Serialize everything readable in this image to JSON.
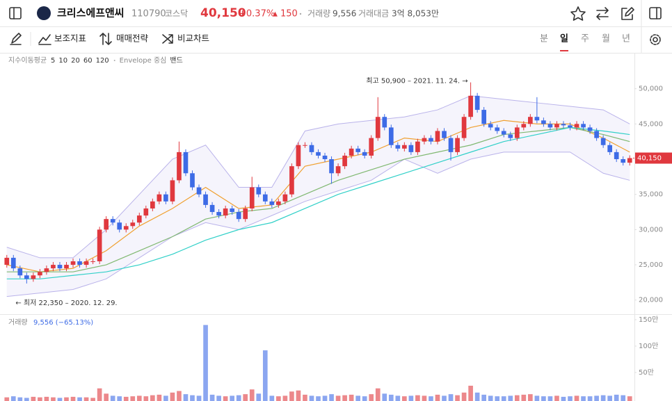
{
  "header": {
    "name": "크리스에프앤씨",
    "code": "110790",
    "market": "코스닥",
    "price": "40,150",
    "change_rate": "+0.37%",
    "arrow": "▲",
    "change": "150",
    "volume_label": "거래량",
    "volume": "9,556",
    "amount_label": "거래대금",
    "amount": "3억 8,053만"
  },
  "toolbar": {
    "tools": [
      "보조지표",
      "매매전략",
      "비교차트"
    ],
    "periods": [
      "분",
      "일",
      "주",
      "월",
      "년"
    ],
    "active_period": 1
  },
  "chart_data": {
    "type": "candlestick",
    "up_color": "#e0383e",
    "down_color": "#3d6be6",
    "open": [
      25000,
      26000,
      24500,
      23500,
      23000,
      23500,
      24000,
      24500,
      25000,
      24500,
      25000,
      25500,
      25000,
      25500,
      25500,
      30000,
      31500,
      31000,
      30000,
      30500,
      31000,
      32000,
      33000,
      34000,
      35000,
      34000,
      37000,
      41000,
      38000,
      36000,
      35000,
      33500,
      32500,
      32000,
      33000,
      32500,
      31500,
      33000,
      36000,
      35000,
      34000,
      33500,
      34000,
      35000,
      39000,
      42000,
      42000,
      41000,
      40500,
      40000,
      38000,
      39000,
      40500,
      41500,
      41000,
      40500,
      43000,
      46000,
      44500,
      42000,
      41500,
      42000,
      41000,
      42500,
      43000,
      42500,
      44000,
      43000,
      41000,
      43000,
      46000,
      49000,
      47000,
      45000,
      44500,
      44000,
      43500,
      43000,
      44500,
      45000,
      46000,
      45500,
      45000,
      44500,
      45000,
      44800,
      44500,
      45000,
      44500,
      44000,
      43000,
      42000,
      41000,
      40000,
      39500
    ],
    "high": [
      26400,
      26400,
      24900,
      23900,
      23900,
      24400,
      24900,
      25400,
      25400,
      25400,
      25900,
      25900,
      25900,
      25900,
      30400,
      31900,
      31900,
      31400,
      30900,
      31400,
      32400,
      33400,
      34400,
      35400,
      35400,
      37400,
      42500,
      41400,
      38400,
      36400,
      35400,
      33900,
      32900,
      33400,
      33400,
      32900,
      33400,
      37500,
      36400,
      35400,
      34400,
      34400,
      35400,
      39400,
      42400,
      42400,
      42400,
      41400,
      40900,
      40400,
      39400,
      40900,
      41900,
      41900,
      41400,
      43400,
      48800,
      46400,
      44900,
      42400,
      42400,
      42400,
      42900,
      43400,
      43400,
      44400,
      44400,
      43400,
      43400,
      46400,
      50900,
      49400,
      47400,
      45400,
      44900,
      44400,
      43900,
      44900,
      45400,
      46400,
      48800,
      45900,
      45400,
      45400,
      45400,
      45200,
      45400,
      45400,
      44900,
      44400,
      43400,
      42400,
      41400,
      40400,
      40550
    ],
    "low": [
      24600,
      24100,
      23100,
      22350,
      22600,
      23100,
      23600,
      24100,
      24100,
      24100,
      24600,
      24600,
      24600,
      25100,
      25100,
      29600,
      30600,
      29600,
      29600,
      30100,
      30600,
      31600,
      32600,
      33600,
      33600,
      33600,
      36600,
      37600,
      35600,
      34600,
      33100,
      32100,
      31600,
      31600,
      32100,
      31100,
      31100,
      32600,
      34600,
      33600,
      33100,
      33100,
      33600,
      34600,
      38600,
      41600,
      40600,
      40100,
      39600,
      36500,
      37600,
      38600,
      40100,
      40600,
      40100,
      40100,
      42600,
      44100,
      41600,
      41100,
      41100,
      40600,
      40600,
      42100,
      42100,
      42100,
      42600,
      39800,
      40600,
      42600,
      45600,
      46600,
      44600,
      44100,
      43600,
      43100,
      42600,
      42600,
      44100,
      44600,
      45100,
      44600,
      44100,
      44100,
      44400,
      44100,
      44100,
      44100,
      43600,
      42600,
      41600,
      40600,
      39600,
      39100,
      39100
    ],
    "close": [
      26000,
      24500,
      23500,
      23000,
      23500,
      24000,
      24500,
      25000,
      24500,
      25000,
      25500,
      25000,
      25500,
      25500,
      30000,
      31500,
      31000,
      30000,
      30500,
      31000,
      32000,
      33000,
      34000,
      35000,
      34000,
      37000,
      41000,
      38000,
      36000,
      35000,
      33500,
      32500,
      32000,
      33000,
      32500,
      31500,
      33000,
      36000,
      35000,
      34000,
      33500,
      34000,
      35000,
      39000,
      42000,
      42000,
      41000,
      40500,
      40000,
      38000,
      39000,
      40500,
      41500,
      41000,
      40500,
      43000,
      46000,
      44500,
      42000,
      41500,
      42000,
      41000,
      42500,
      43000,
      42500,
      44000,
      43000,
      41000,
      43000,
      46000,
      49000,
      47000,
      45000,
      44500,
      44000,
      43500,
      43000,
      44500,
      45000,
      46000,
      45500,
      45000,
      44500,
      45000,
      44800,
      44500,
      45000,
      44500,
      44000,
      43000,
      42000,
      41000,
      40000,
      39500,
      40150
    ],
    "ylim": [
      18000,
      54900
    ],
    "yticks": [
      {
        "value": 20000,
        "label": "20,000"
      },
      {
        "value": 25000,
        "label": "25,000"
      },
      {
        "value": 30000,
        "label": "30,000"
      },
      {
        "value": 35000,
        "label": "35,000"
      },
      {
        "value": 40000,
        "label": "40,000"
      },
      {
        "value": 45000,
        "label": "45,000"
      },
      {
        "value": 50000,
        "label": "50,000"
      }
    ],
    "ma_x": [
      0,
      5,
      10,
      15,
      20,
      25,
      30,
      35,
      40,
      45,
      50,
      55,
      60,
      65,
      70,
      75,
      80,
      85,
      90,
      94
    ],
    "series": [
      {
        "name": "20",
        "color": "#f0a030",
        "values": [
          25000,
          24000,
          24500,
          27000,
          30500,
          33000,
          36000,
          33000,
          33500,
          39000,
          40000,
          41000,
          43000,
          42500,
          44500,
          45500,
          45000,
          45000,
          43000,
          41000
        ]
      },
      {
        "name": "60",
        "color": "#7fb870",
        "values": [
          24000,
          24000,
          24000,
          25000,
          27000,
          29000,
          31500,
          32500,
          33000,
          35000,
          37000,
          38500,
          40000,
          41000,
          42000,
          43500,
          44000,
          44500,
          43500,
          42500
        ]
      },
      {
        "name": "120",
        "color": "#30d0c8",
        "values": [
          23000,
          23000,
          23500,
          24000,
          25000,
          26500,
          28500,
          30000,
          31000,
          33000,
          35000,
          36500,
          38000,
          39500,
          41000,
          42500,
          43500,
          44500,
          44000,
          43500
        ]
      }
    ],
    "envelope": {
      "color": "#b9b2ea",
      "upper": [
        27500,
        26000,
        26000,
        30000,
        35000,
        40000,
        42000,
        36000,
        36000,
        44000,
        45000,
        45500,
        46000,
        47000,
        49000,
        48500,
        48000,
        47500,
        47000,
        45000
      ],
      "lower": [
        20500,
        21000,
        21500,
        23000,
        26000,
        29000,
        31000,
        30000,
        32000,
        34000,
        35500,
        37000,
        40000,
        38000,
        40000,
        41000,
        41000,
        41000,
        38000,
        37000
      ]
    },
    "legend": {
      "title": "지수이동평균",
      "extra": [
        {
          "name": "5",
          "color": "#a855d8"
        },
        {
          "name": "10",
          "color": "#f05050"
        }
      ],
      "envelope": "Envelope 중심",
      "band": "밴드"
    },
    "annotations": {
      "high": "최고 50,900 – 2021. 11. 24. →",
      "low": "← 최저 22,350 – 2020. 12. 29."
    },
    "volume": {
      "label": "거래량",
      "summary": "9,556 (−65.13%)",
      "values": [
        3,
        5,
        3,
        2,
        4,
        3,
        4,
        3,
        2,
        3,
        4,
        3,
        3,
        2,
        20,
        10,
        6,
        5,
        4,
        5,
        6,
        5,
        7,
        8,
        6,
        12,
        15,
        9,
        7,
        6,
        140,
        8,
        6,
        5,
        6,
        7,
        9,
        18,
        10,
        92,
        6,
        5,
        6,
        14,
        16,
        8,
        6,
        5,
        6,
        9,
        6,
        7,
        8,
        6,
        5,
        9,
        20,
        10,
        8,
        6,
        5,
        6,
        7,
        6,
        5,
        8,
        6,
        9,
        7,
        12,
        25,
        12,
        8,
        6,
        5,
        5,
        6,
        7,
        8,
        9,
        6,
        5,
        5,
        6,
        4,
        5,
        6,
        5,
        5,
        6,
        7,
        6,
        8,
        7,
        5
      ],
      "ylim": [
        0,
        156.6
      ],
      "yticks": [
        {
          "value": 50,
          "label": "50만"
        },
        {
          "value": 100,
          "label": "100만"
        },
        {
          "value": 150,
          "label": "150만"
        }
      ]
    }
  }
}
